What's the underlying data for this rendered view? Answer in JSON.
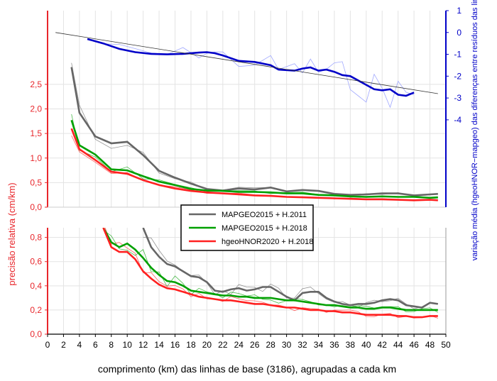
{
  "chart_data": [
    {
      "type": "line",
      "panel": "top",
      "x_domain": [
        0,
        50
      ],
      "ylim_left": [
        0,
        4.0
      ],
      "ylim_right": [
        -8,
        1
      ],
      "left_ticks": [
        0.0,
        0.5,
        1.0,
        1.5,
        2.0,
        2.5
      ],
      "left_tick_labels": [
        "0,0",
        "0,5",
        "1,0",
        "1,5",
        "2,0",
        "2,5"
      ],
      "right_ticks": [
        1,
        0,
        -1,
        -2,
        -3,
        -4
      ],
      "right_tick_labels": [
        "1",
        "0",
        "-1",
        "-2",
        "-3",
        "-4"
      ],
      "right_ylabel": "variação média (hgeoHNOR−mapgeo) das diferenças entre resíduos das linhas de base [cm]",
      "series": [
        {
          "name": "MAPGEO2015  +  H.2011",
          "color": "#666666",
          "x": [
            3,
            4,
            6,
            8,
            10,
            12,
            14,
            16,
            18,
            20,
            22,
            24,
            26,
            28,
            30,
            32,
            34,
            36,
            38,
            40,
            42,
            44,
            46,
            48,
            49
          ],
          "y": [
            2.85,
            1.92,
            1.44,
            1.3,
            1.33,
            1.06,
            0.74,
            0.6,
            0.48,
            0.37,
            0.34,
            0.38,
            0.36,
            0.4,
            0.32,
            0.35,
            0.33,
            0.27,
            0.25,
            0.26,
            0.28,
            0.28,
            0.24,
            0.26,
            0.27
          ]
        },
        {
          "name": "MAPGEO2015  +  H.2018",
          "color": "#00a000",
          "x": [
            3,
            4,
            6,
            8,
            10,
            12,
            14,
            16,
            18,
            20,
            22,
            24,
            26,
            28,
            30,
            32,
            34,
            36,
            38,
            40,
            42,
            44,
            46,
            48,
            49
          ],
          "y": [
            1.77,
            1.26,
            1.07,
            0.77,
            0.75,
            0.63,
            0.52,
            0.45,
            0.37,
            0.34,
            0.33,
            0.31,
            0.31,
            0.3,
            0.28,
            0.28,
            0.25,
            0.24,
            0.22,
            0.21,
            0.22,
            0.21,
            0.21,
            0.19,
            0.2
          ]
        },
        {
          "name": "hgeoHNOR2020 + H.2018",
          "color": "#ff2020",
          "x": [
            3,
            4,
            6,
            8,
            10,
            12,
            14,
            16,
            18,
            20,
            22,
            24,
            26,
            28,
            30,
            32,
            34,
            36,
            38,
            40,
            42,
            44,
            46,
            48,
            49
          ],
          "y": [
            1.6,
            1.18,
            0.96,
            0.72,
            0.68,
            0.55,
            0.45,
            0.38,
            0.33,
            0.3,
            0.28,
            0.26,
            0.24,
            0.23,
            0.21,
            0.2,
            0.19,
            0.18,
            0.17,
            0.16,
            0.16,
            0.15,
            0.14,
            0.15,
            0.14
          ]
        },
        {
          "name": "",
          "color": "#0000c8",
          "x": [
            5,
            7,
            9,
            11,
            13,
            15,
            17,
            19,
            20,
            21,
            22,
            24,
            26,
            28,
            29,
            31,
            32,
            33,
            34,
            35,
            36,
            37,
            38,
            40,
            41,
            42,
            43,
            44,
            45,
            46
          ],
          "y": [
            -0.3,
            -0.5,
            -0.75,
            -0.9,
            -0.98,
            -1.0,
            -0.98,
            -0.92,
            -0.9,
            -0.95,
            -1.05,
            -1.3,
            -1.35,
            -1.5,
            -1.7,
            -1.75,
            -1.65,
            -1.6,
            -1.75,
            -1.7,
            -1.8,
            -1.95,
            -2.0,
            -2.4,
            -2.6,
            -2.65,
            -2.6,
            -2.85,
            -2.9,
            -2.75
          ]
        },
        {
          "name": "",
          "color": "#000000",
          "x": [
            1,
            49
          ],
          "y": [
            0,
            -2.8
          ]
        }
      ]
    },
    {
      "type": "line",
      "panel": "bottom",
      "x_domain": [
        0,
        50
      ],
      "ylim": [
        0,
        0.88
      ],
      "yticks": [
        0.0,
        0.2,
        0.4,
        0.6,
        0.8
      ],
      "ytick_labels": [
        "0,0",
        "0,2",
        "0,4",
        "0,6",
        "0,8"
      ],
      "ylabel": "precisão relativa (cm/km)",
      "xticks": [
        0,
        2,
        4,
        6,
        8,
        10,
        12,
        14,
        16,
        18,
        20,
        22,
        24,
        26,
        28,
        30,
        32,
        34,
        36,
        38,
        40,
        42,
        44,
        46,
        48,
        50
      ],
      "xtick_labels": [
        "0",
        "2",
        "4",
        "6",
        "8",
        "10",
        "12",
        "14",
        "16",
        "18",
        "20",
        "22",
        "24",
        "26",
        "28",
        "30",
        "32",
        "34",
        "36",
        "38",
        "40",
        "42",
        "44",
        "46",
        "48",
        "50"
      ],
      "xlabel": "comprimento (km) das linhas de base (3186), agrupadas a cada km",
      "series": [
        {
          "name": "MAPGEO2015  +  H.2011",
          "color": "#666666",
          "x": [
            12,
            13,
            14,
            15,
            16,
            17,
            18,
            19,
            20,
            21,
            22,
            23,
            24,
            25,
            26,
            27,
            28,
            29,
            30,
            31,
            32,
            33,
            34,
            35,
            36,
            37,
            38,
            39,
            40,
            41,
            42,
            43,
            44,
            45,
            46,
            47,
            48,
            49
          ],
          "y": [
            0.88,
            0.72,
            0.64,
            0.58,
            0.56,
            0.52,
            0.48,
            0.47,
            0.43,
            0.36,
            0.35,
            0.37,
            0.38,
            0.36,
            0.37,
            0.39,
            0.39,
            0.35,
            0.31,
            0.28,
            0.34,
            0.35,
            0.35,
            0.3,
            0.27,
            0.25,
            0.24,
            0.25,
            0.25,
            0.26,
            0.28,
            0.29,
            0.28,
            0.24,
            0.23,
            0.22,
            0.26,
            0.25
          ]
        },
        {
          "name": "MAPGEO2015  +  H.2018",
          "color": "#00a000",
          "x": [
            7,
            8,
            9,
            10,
            11,
            12,
            13,
            14,
            15,
            16,
            17,
            18,
            19,
            20,
            21,
            22,
            23,
            24,
            25,
            26,
            27,
            28,
            29,
            30,
            31,
            32,
            33,
            34,
            35,
            36,
            37,
            38,
            39,
            40,
            41,
            42,
            43,
            44,
            45,
            46,
            47,
            48,
            49
          ],
          "y": [
            0.88,
            0.76,
            0.72,
            0.75,
            0.7,
            0.63,
            0.55,
            0.49,
            0.44,
            0.43,
            0.4,
            0.36,
            0.35,
            0.34,
            0.33,
            0.32,
            0.32,
            0.31,
            0.31,
            0.3,
            0.3,
            0.3,
            0.29,
            0.28,
            0.28,
            0.27,
            0.26,
            0.25,
            0.24,
            0.24,
            0.23,
            0.22,
            0.22,
            0.21,
            0.21,
            0.22,
            0.22,
            0.21,
            0.2,
            0.2,
            0.2,
            0.2,
            0.2
          ]
        },
        {
          "name": "hgeoHNOR2020 + H.2018",
          "color": "#ff2020",
          "x": [
            7,
            8,
            9,
            10,
            11,
            12,
            13,
            14,
            15,
            16,
            17,
            18,
            19,
            20,
            21,
            22,
            23,
            24,
            25,
            26,
            27,
            28,
            29,
            30,
            31,
            32,
            33,
            34,
            35,
            36,
            37,
            38,
            39,
            40,
            41,
            42,
            43,
            44,
            45,
            46,
            47,
            48,
            49
          ],
          "y": [
            0.88,
            0.72,
            0.68,
            0.68,
            0.62,
            0.52,
            0.46,
            0.41,
            0.38,
            0.37,
            0.35,
            0.33,
            0.31,
            0.3,
            0.29,
            0.28,
            0.28,
            0.27,
            0.26,
            0.25,
            0.25,
            0.24,
            0.23,
            0.22,
            0.22,
            0.21,
            0.2,
            0.2,
            0.19,
            0.19,
            0.18,
            0.18,
            0.17,
            0.16,
            0.16,
            0.16,
            0.16,
            0.15,
            0.15,
            0.14,
            0.14,
            0.15,
            0.15
          ]
        }
      ]
    }
  ],
  "legend": {
    "entries": [
      {
        "label": "MAPGEO2015  +  H.2011",
        "color": "#666666"
      },
      {
        "label": "MAPGEO2015  +  H.2018",
        "color": "#00a000"
      },
      {
        "label": "hgeoHNOR2020 + H.2018",
        "color": "#ff2020"
      }
    ]
  },
  "colors": {
    "left_axis": "#e8262b",
    "right_axis": "#0000c8",
    "grid": "#e0e0e0"
  }
}
